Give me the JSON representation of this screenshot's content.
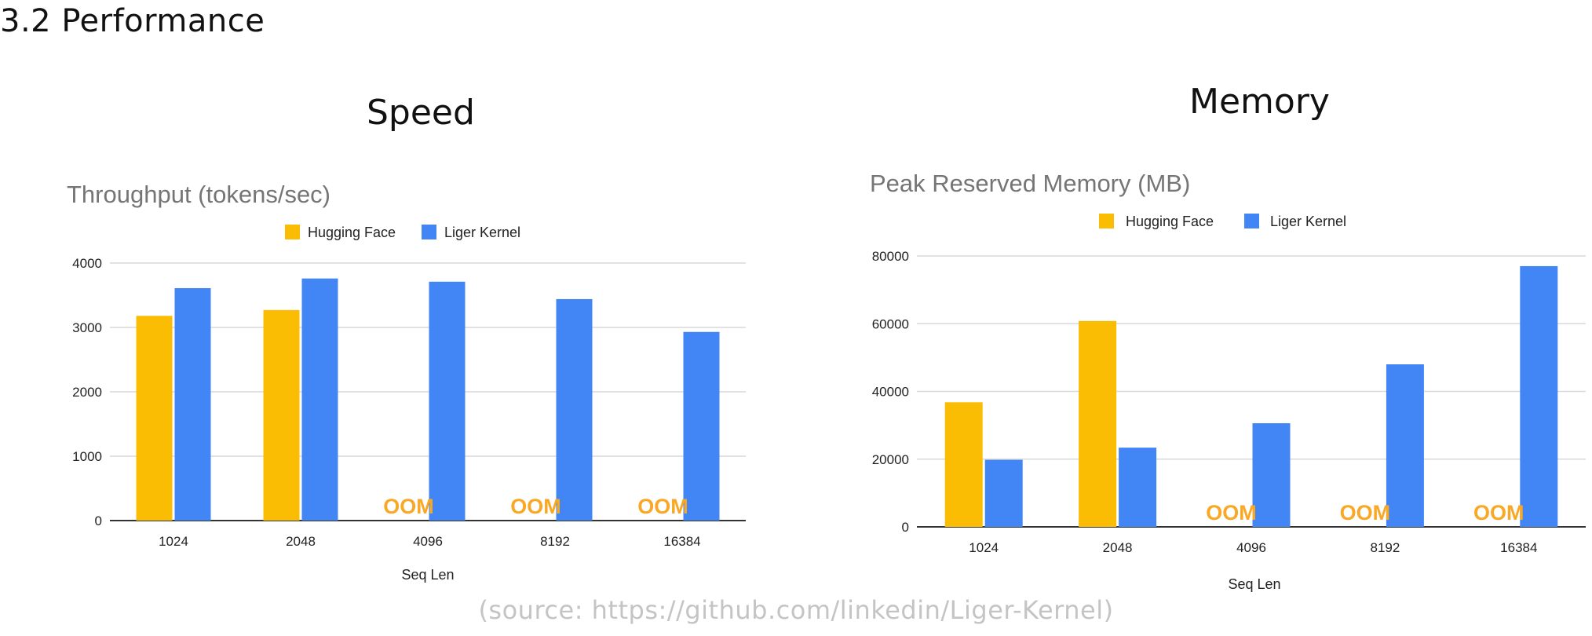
{
  "page": {
    "title": "3.2 Performance",
    "source_note": "(source: https://github.com/linkedin/Liger-Kernel)"
  },
  "panels": {
    "speed_title": "Speed",
    "memory_title": "Memory"
  },
  "colors": {
    "hugging_face": "#fbbc04",
    "liger_kernel": "#4285f4",
    "oom_text": "#f9a825",
    "grid": "#d9d9d9"
  },
  "chart_data": [
    {
      "type": "bar",
      "title": "Throughput (tokens/sec)",
      "xlabel": "Seq Len",
      "ylabel": "",
      "categories": [
        "1024",
        "2048",
        "4096",
        "8192",
        "16384"
      ],
      "series": [
        {
          "name": "Hugging Face",
          "values": [
            3180,
            3270,
            null,
            null,
            null
          ]
        },
        {
          "name": "Liger Kernel",
          "values": [
            3610,
            3760,
            3710,
            3440,
            2930
          ]
        }
      ],
      "annotations": [
        "",
        "",
        "OOM",
        "OOM",
        "OOM"
      ],
      "ylim": [
        0,
        4000
      ],
      "yticks": [
        0,
        1000,
        2000,
        3000,
        4000
      ],
      "ytick_labels": [
        "0",
        "1000",
        "2000",
        "3000",
        "4000"
      ],
      "grid": true,
      "legend_position": "top"
    },
    {
      "type": "bar",
      "title": "Peak Reserved Memory (MB)",
      "xlabel": "Seq Len",
      "ylabel": "",
      "categories": [
        "1024",
        "2048",
        "4096",
        "8192",
        "16384"
      ],
      "series": [
        {
          "name": "Hugging Face",
          "values": [
            36800,
            60800,
            null,
            null,
            null
          ]
        },
        {
          "name": "Liger Kernel",
          "values": [
            19800,
            23400,
            30600,
            48000,
            77000
          ]
        }
      ],
      "annotations": [
        "",
        "",
        "OOM",
        "OOM",
        "OOM"
      ],
      "ylim": [
        0,
        80000
      ],
      "yticks": [
        0,
        20000,
        40000,
        60000,
        80000
      ],
      "ytick_labels": [
        "0",
        "20000",
        "40000",
        "60000",
        "80000"
      ],
      "grid": true,
      "legend_position": "top"
    }
  ]
}
